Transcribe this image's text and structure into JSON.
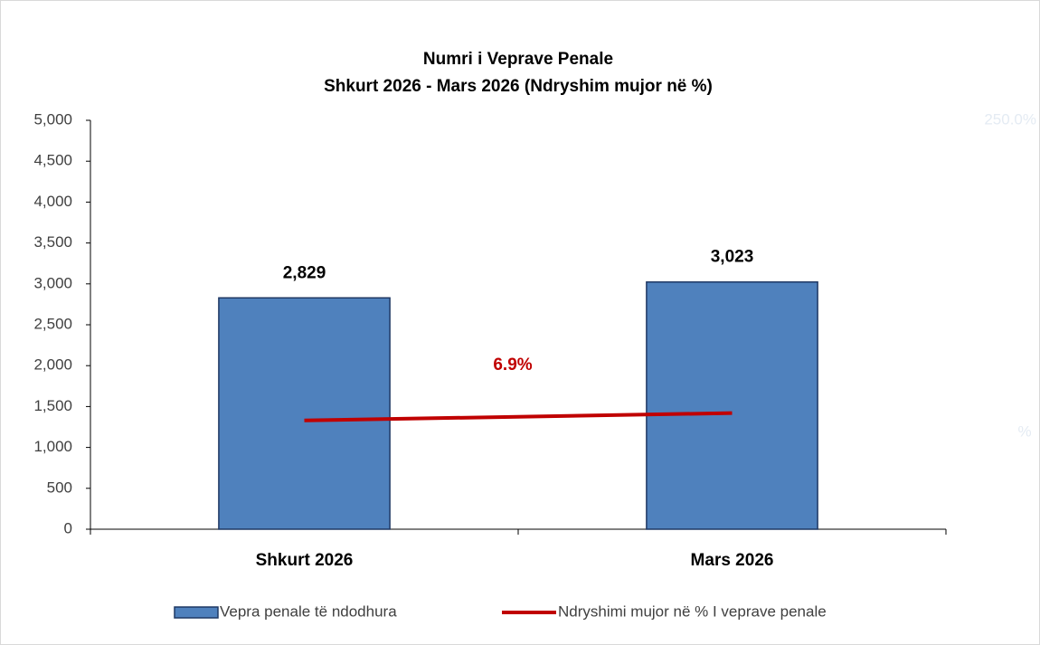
{
  "chart_data": {
    "type": "bar",
    "title": "Numri i Veprave Penale",
    "subtitle": "Shkurt 2026 - Mars 2026 (Ndryshim mujor në %)",
    "categories": [
      "Shkurt 2026",
      "Mars 2026"
    ],
    "series": [
      {
        "name": "Vepra penale të ndodhura",
        "type": "bar",
        "color": "#4f81bd",
        "values": [
          2829,
          3023
        ],
        "value_labels": [
          "2,829",
          "3,023"
        ]
      },
      {
        "name": "Ndryshimi mujor në % I veprave penale",
        "type": "line",
        "axis": "y2",
        "color": "#c00000",
        "values": [
          66.5,
          71
        ]
      }
    ],
    "annotations": [
      "6.9%"
    ],
    "ylim": [
      0,
      5000
    ],
    "yticks": [
      0,
      500,
      {
        "value": 1000,
        "label": "1,000"
      },
      {
        "value": 1500,
        "label": "1,500"
      },
      {
        "value": 2000,
        "label": "2,000"
      },
      {
        "value": 2500,
        "label": "2,500"
      },
      {
        "value": 3000,
        "label": "3,000"
      },
      {
        "value": 3500,
        "label": "3,500"
      },
      {
        "value": 4000,
        "label": "4,000"
      },
      {
        "value": 4500,
        "label": "4,500"
      },
      {
        "value": 5000,
        "label": "5,000"
      }
    ],
    "y2lim": [
      0,
      250
    ],
    "y2ticks": [
      {
        "value": 250,
        "label": "250.0%"
      }
    ],
    "y2label": "%",
    "legend": "bottom"
  }
}
